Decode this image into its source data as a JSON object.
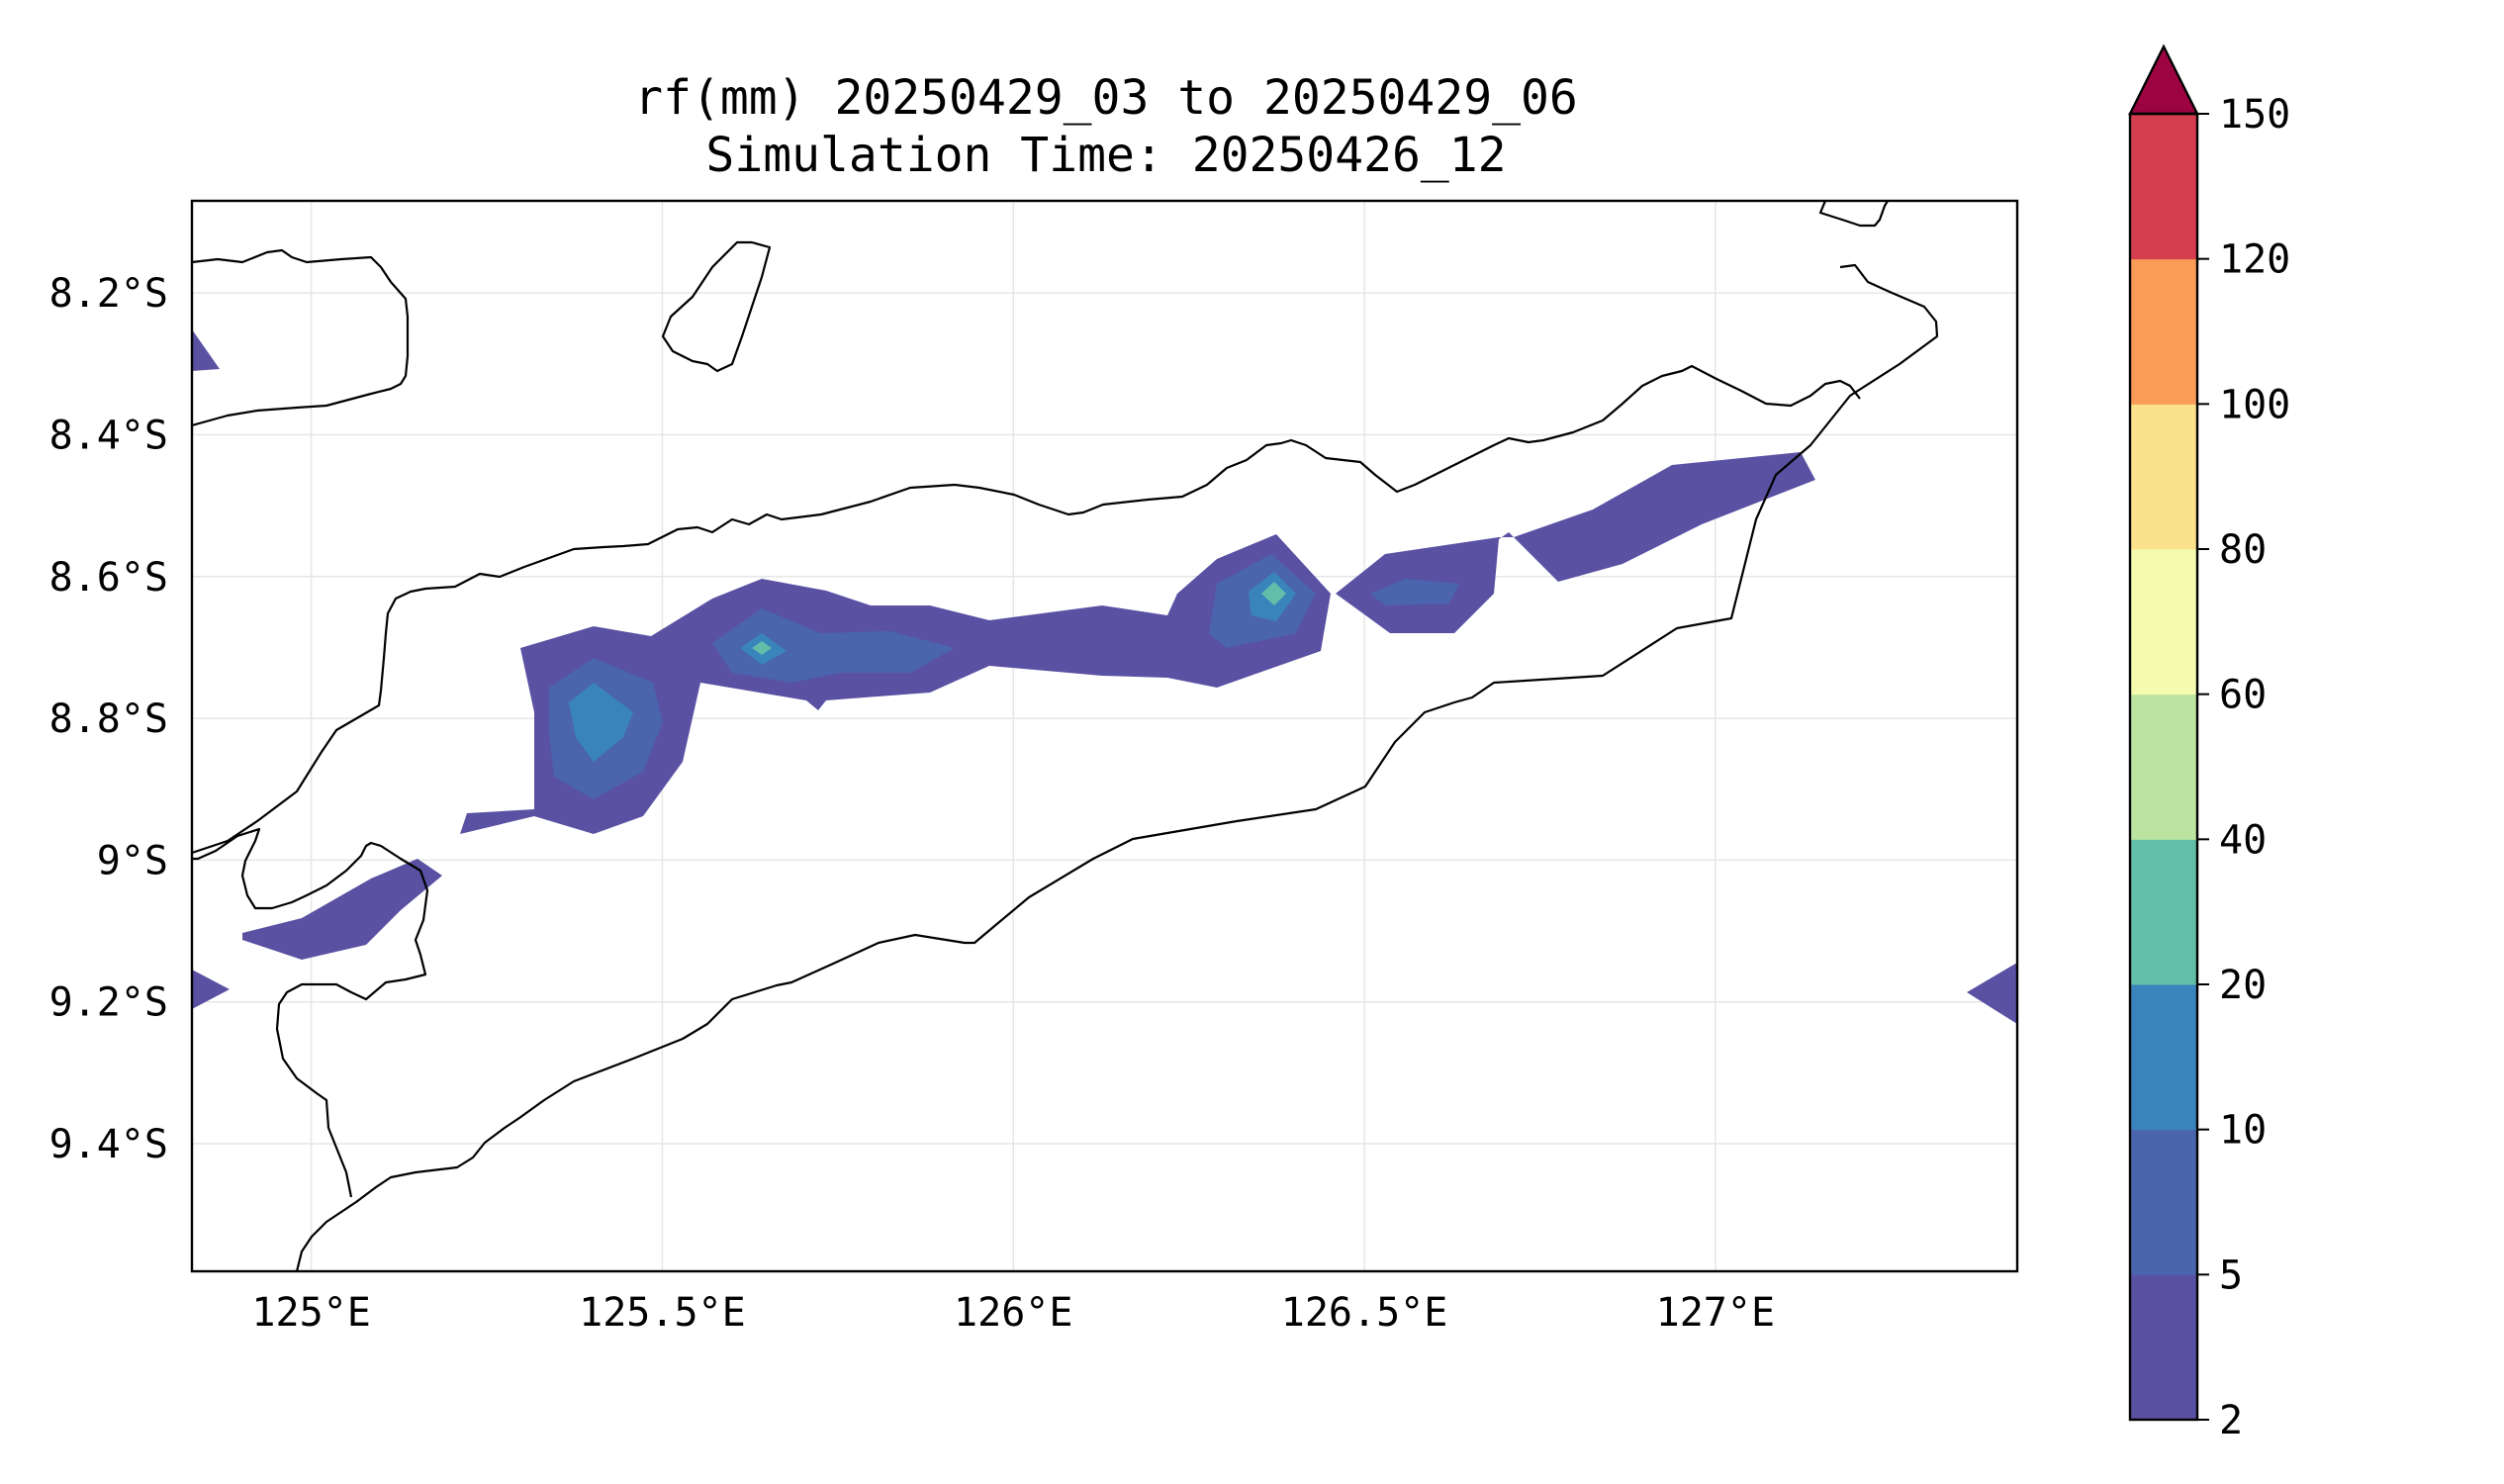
{
  "title": {
    "line1": "rf(mm) 20250429_03 to 20250429_06",
    "line2": "Simulation Time: 20250426_12"
  },
  "map": {
    "lon_range": [
      124.83,
      127.43
    ],
    "lat_range": [
      -9.58,
      -8.07
    ],
    "x_ticks": [
      {
        "value": 125.0,
        "label": "125°E"
      },
      {
        "value": 125.5,
        "label": "125.5°E"
      },
      {
        "value": 126.0,
        "label": "126°E"
      },
      {
        "value": 126.5,
        "label": "126.5°E"
      },
      {
        "value": 127.0,
        "label": "127°E"
      }
    ],
    "y_ticks": [
      {
        "value": -8.2,
        "label": "8.2°S"
      },
      {
        "value": -8.4,
        "label": "8.4°S"
      },
      {
        "value": -8.6,
        "label": "8.6°S"
      },
      {
        "value": -8.8,
        "label": "8.8°S"
      },
      {
        "value": -9.0,
        "label": "9°S"
      },
      {
        "value": -9.2,
        "label": "9.2°S"
      },
      {
        "value": -9.4,
        "label": "9.4°S"
      }
    ],
    "grid": true
  },
  "colorbar": {
    "levels": [
      {
        "value": 2,
        "label": "2"
      },
      {
        "value": 5,
        "label": "5"
      },
      {
        "value": 10,
        "label": "10"
      },
      {
        "value": 20,
        "label": "20"
      },
      {
        "value": 40,
        "label": "40"
      },
      {
        "value": 60,
        "label": "60"
      },
      {
        "value": 80,
        "label": "80"
      },
      {
        "value": 100,
        "label": "100"
      },
      {
        "value": 120,
        "label": "120"
      },
      {
        "value": 150,
        "label": "150"
      }
    ],
    "colors": [
      "#5a51a3",
      "#4a64ae",
      "#3a84bc",
      "#62bea8",
      "#bce4a0",
      "#f4fbaf",
      "#fce18d",
      "#fa9c58",
      "#d43e4f"
    ],
    "extend_color": "#9b0341",
    "extend": "max"
  }
}
